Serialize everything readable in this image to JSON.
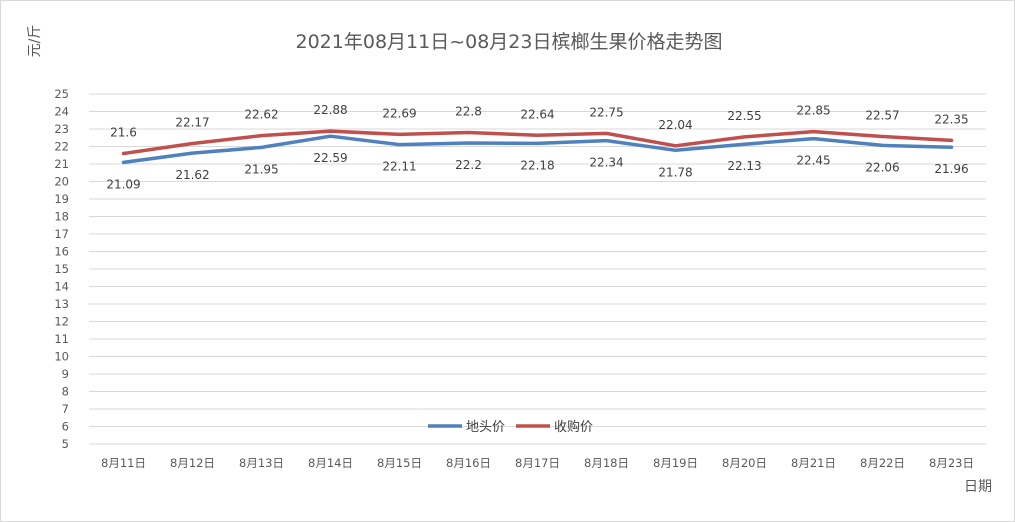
{
  "chart_data": {
    "type": "line",
    "title": "2021年08月11日~08月23日槟榔生果价格走势图",
    "ylabel": "元/斤",
    "xlabel": "日期",
    "ylim": [
      5,
      25
    ],
    "ytick_step": 1,
    "grid": true,
    "legend_position": "bottom-center",
    "categories": [
      "8月11日",
      "8月12日",
      "8月13日",
      "8月14日",
      "8月15日",
      "8月16日",
      "8月17日",
      "8月18日",
      "8月19日",
      "8月20日",
      "8月21日",
      "8月22日",
      "8月23日"
    ],
    "series": [
      {
        "name": "地头价",
        "color": "#4f81bd",
        "label_position": "below",
        "values": [
          21.09,
          21.62,
          21.95,
          22.59,
          22.11,
          22.2,
          22.18,
          22.34,
          21.78,
          22.13,
          22.45,
          22.06,
          21.96
        ],
        "labels": [
          "21.09",
          "21.62",
          "21.95",
          "22.59",
          "22.11",
          "22.2",
          "22.18",
          "22.34",
          "21.78",
          "22.13",
          "22.45",
          "22.06",
          "21.96"
        ]
      },
      {
        "name": "收购价",
        "color": "#c0504d",
        "label_position": "above",
        "values": [
          21.6,
          22.17,
          22.62,
          22.88,
          22.69,
          22.8,
          22.64,
          22.75,
          22.04,
          22.55,
          22.85,
          22.57,
          22.35
        ],
        "labels": [
          "21.6",
          "22.17",
          "22.62",
          "22.88",
          "22.69",
          "22.8",
          "22.64",
          "22.75",
          "22.04",
          "22.55",
          "22.85",
          "22.57",
          "22.35"
        ]
      }
    ]
  }
}
